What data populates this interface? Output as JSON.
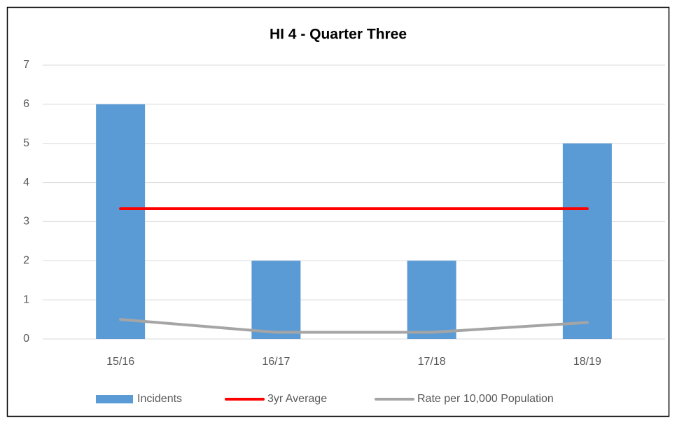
{
  "chart_data": {
    "type": "bar",
    "title": "HI 4 - Quarter Three",
    "categories": [
      "15/16",
      "16/17",
      "17/18",
      "18/19"
    ],
    "series": [
      {
        "name": "Incidents",
        "type": "bar",
        "color": "#5b9bd5",
        "values": [
          6,
          2,
          2,
          5
        ]
      },
      {
        "name": "3yr Average",
        "type": "line",
        "color": "#ff0000",
        "values": [
          3.33,
          3.33,
          3.33,
          3.33
        ]
      },
      {
        "name": "Rate per 10,000 Population",
        "type": "line",
        "color": "#a5a5a5",
        "values": [
          0.5,
          0.17,
          0.17,
          0.42
        ]
      }
    ],
    "ylim": [
      0,
      7
    ],
    "yticks": [
      0,
      1,
      2,
      3,
      4,
      5,
      6,
      7
    ],
    "grid": true,
    "legend": "bottom"
  }
}
